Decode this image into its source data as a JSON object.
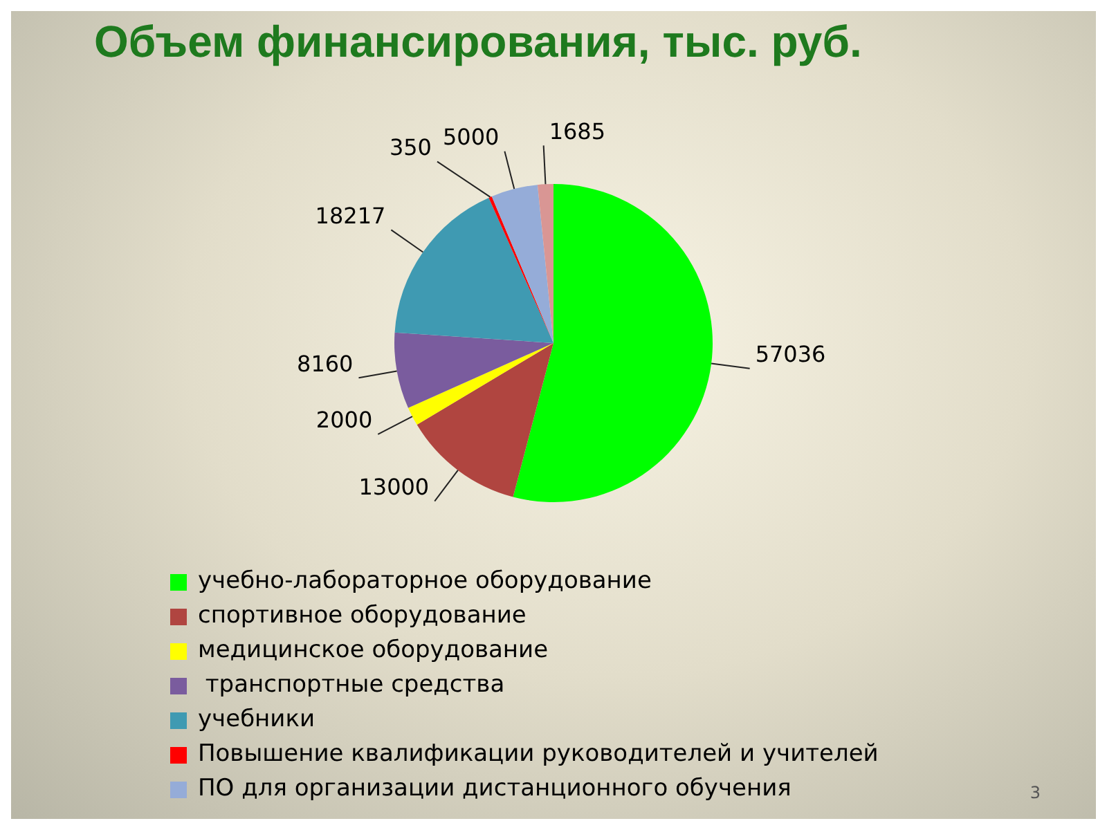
{
  "chart_data": {
    "type": "pie",
    "title": "Объем финансирования, тыс. руб.",
    "categories": [
      "учебно-лабораторное оборудование",
      "спортивное оборудование",
      "медицинское оборудование",
      " транспортные средства",
      "учебники",
      "Повышение квалификации руководителей и учителей",
      "ПО для организации дистанционного обучения",
      null
    ],
    "values": [
      57036,
      13000,
      2000,
      8160,
      18217,
      350,
      5000,
      1685
    ],
    "colors": [
      "#00ff00",
      "#b04540",
      "#ffff00",
      "#7a5c9e",
      "#3f9ab2",
      "#ff0000",
      "#95acd8",
      "#d99694"
    ],
    "data_labels": true,
    "legend": "bottom",
    "annotations": [
      "3"
    ]
  }
}
